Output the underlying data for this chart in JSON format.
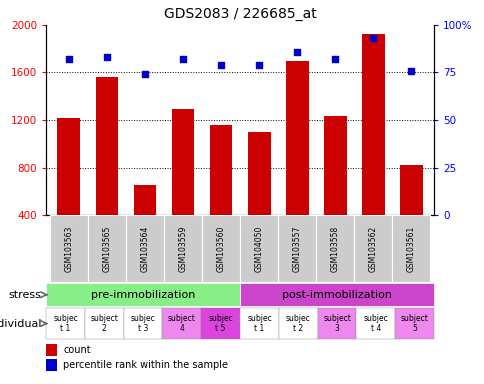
{
  "title": "GDS2083 / 226685_at",
  "samples": [
    "GSM103563",
    "GSM103565",
    "GSM103564",
    "GSM103559",
    "GSM103560",
    "GSM104050",
    "GSM103557",
    "GSM103558",
    "GSM103562",
    "GSM103561"
  ],
  "counts": [
    1220,
    1560,
    650,
    1290,
    1155,
    1100,
    1700,
    1230,
    1920,
    820
  ],
  "percentile_ranks": [
    82,
    83,
    74,
    82,
    79,
    79,
    86,
    82,
    93,
    76
  ],
  "ylim_left": [
    400,
    2000
  ],
  "ylim_right": [
    0,
    100
  ],
  "yticks_left": [
    400,
    800,
    1200,
    1600,
    2000
  ],
  "yticks_right": [
    0,
    25,
    50,
    75,
    100
  ],
  "bar_color": "#cc0000",
  "dot_color": "#0000cc",
  "stress_groups": [
    {
      "label": "pre-immobilization",
      "start": 0,
      "end": 5,
      "color": "#88ee88"
    },
    {
      "label": "post-immobilization",
      "start": 5,
      "end": 10,
      "color": "#cc44cc"
    }
  ],
  "individuals": [
    {
      "label": "subjec\nt 1",
      "color": "#ffffff"
    },
    {
      "label": "subject\n2",
      "color": "#ffffff"
    },
    {
      "label": "subjec\nt 3",
      "color": "#ffffff"
    },
    {
      "label": "subject\n4",
      "color": "#ee88ee"
    },
    {
      "label": "subjec\nt 5",
      "color": "#dd44dd"
    },
    {
      "label": "subjec\nt 1",
      "color": "#ffffff"
    },
    {
      "label": "subjec\nt 2",
      "color": "#ffffff"
    },
    {
      "label": "subject\n3",
      "color": "#ee88ee"
    },
    {
      "label": "subjec\nt 4",
      "color": "#ffffff"
    },
    {
      "label": "subject\n5",
      "color": "#ee88ee"
    }
  ],
  "stress_label": "stress",
  "individual_label": "individual",
  "legend_count": "count",
  "legend_percentile": "percentile rank within the sample",
  "sample_bg": "#cccccc",
  "header_bg": "#dddddd"
}
